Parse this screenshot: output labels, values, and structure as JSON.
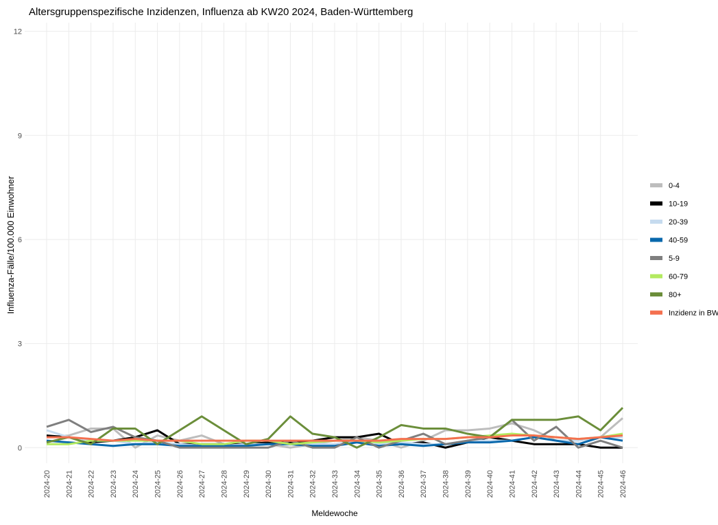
{
  "chart_data": {
    "type": "line",
    "title": "Altersgruppenspezifische Inzidenzen, Influenza ab KW20 2024, Baden-Württemberg",
    "x_label": "Meldewoche",
    "y_label": "Influenza-Fälle/100.000 Einwohner",
    "categories": [
      "2024-20",
      "2024-21",
      "2024-22",
      "2024-23",
      "2024-24",
      "2024-25",
      "2024-26",
      "2024-27",
      "2024-28",
      "2024-29",
      "2024-30",
      "2024-31",
      "2024-32",
      "2024-33",
      "2024-34",
      "2024-35",
      "2024-36",
      "2024-37",
      "2024-38",
      "2024-39",
      "2024-40",
      "2024-41",
      "2024-42",
      "2024-43",
      "2024-44",
      "2024-45",
      "2024-46"
    ],
    "ylim": [
      -0.45,
      12.25
    ],
    "yticks": [
      0,
      3,
      6,
      9,
      12
    ],
    "grid": true,
    "legend": "right",
    "series": [
      {
        "name": "0-4",
        "color": "#bdbdbd",
        "values": [
          0.3,
          0.35,
          0.55,
          0.55,
          0,
          0.35,
          0.2,
          0.35,
          0.1,
          0.1,
          0.1,
          0,
          0.1,
          0.2,
          0.3,
          0.2,
          0,
          0.2,
          0.5,
          0.5,
          0.55,
          0.7,
          0.5,
          0.2,
          0.2,
          0.3,
          0.85
        ]
      },
      {
        "name": "10-19",
        "color": "#000000",
        "values": [
          0.35,
          0.3,
          0.15,
          0.2,
          0.3,
          0.5,
          0.1,
          0.1,
          0.1,
          0.1,
          0.15,
          0.15,
          0.2,
          0.3,
          0.3,
          0.4,
          0.1,
          0.15,
          0,
          0.15,
          0.3,
          0.2,
          0.1,
          0.1,
          0.1,
          0,
          0
        ]
      },
      {
        "name": "20-39",
        "color": "#c6dbef",
        "values": [
          0.5,
          0.3,
          0.2,
          0.2,
          0.1,
          0.15,
          0.1,
          0.05,
          0.05,
          0.1,
          0.1,
          0.1,
          0.1,
          0.1,
          0.2,
          0.1,
          0.15,
          0.1,
          0.1,
          0.2,
          0.2,
          0.2,
          0.3,
          0.2,
          0.2,
          0.3,
          0.3
        ]
      },
      {
        "name": "40-59",
        "color": "#0868ac",
        "values": [
          0.2,
          0.15,
          0.1,
          0.05,
          0.1,
          0.1,
          0.05,
          0.05,
          0.05,
          0.05,
          0.1,
          0.1,
          0.05,
          0.05,
          0.15,
          0.05,
          0.1,
          0.05,
          0.1,
          0.15,
          0.15,
          0.2,
          0.3,
          0.2,
          0.1,
          0.3,
          0.2
        ]
      },
      {
        "name": "5-9",
        "color": "#7f7f7f",
        "values": [
          0.6,
          0.8,
          0.45,
          0.6,
          0.3,
          0.2,
          0,
          0,
          0,
          0,
          0,
          0.2,
          0,
          0,
          0.3,
          0,
          0.2,
          0.4,
          0.1,
          0.2,
          0.3,
          0.8,
          0.2,
          0.6,
          0,
          0.2,
          0
        ]
      },
      {
        "name": "60-79",
        "color": "#b3ea5f",
        "values": [
          0.1,
          0.1,
          0.2,
          0.2,
          0.2,
          0.2,
          0.2,
          0.1,
          0.1,
          0.2,
          0.2,
          0.1,
          0.15,
          0.2,
          0.2,
          0.15,
          0.2,
          0.25,
          0.25,
          0.3,
          0.35,
          0.4,
          0.35,
          0.3,
          0.25,
          0.3,
          0.4
        ]
      },
      {
        "name": "80+",
        "color": "#6b8e3a",
        "values": [
          0.15,
          0.3,
          0.1,
          0.55,
          0.55,
          0.1,
          0.5,
          0.9,
          0.5,
          0.1,
          0.25,
          0.9,
          0.4,
          0.3,
          0,
          0.3,
          0.65,
          0.55,
          0.55,
          0.4,
          0.3,
          0.8,
          0.8,
          0.8,
          0.9,
          0.5,
          1.15
        ]
      },
      {
        "name": "Inzidenz in BW",
        "color": "#f4704f",
        "values": [
          0.3,
          0.3,
          0.25,
          0.2,
          0.25,
          0.2,
          0.2,
          0.2,
          0.2,
          0.2,
          0.2,
          0.2,
          0.2,
          0.2,
          0.2,
          0.2,
          0.25,
          0.25,
          0.25,
          0.3,
          0.3,
          0.35,
          0.35,
          0.3,
          0.25,
          0.3,
          0.35
        ]
      }
    ]
  }
}
